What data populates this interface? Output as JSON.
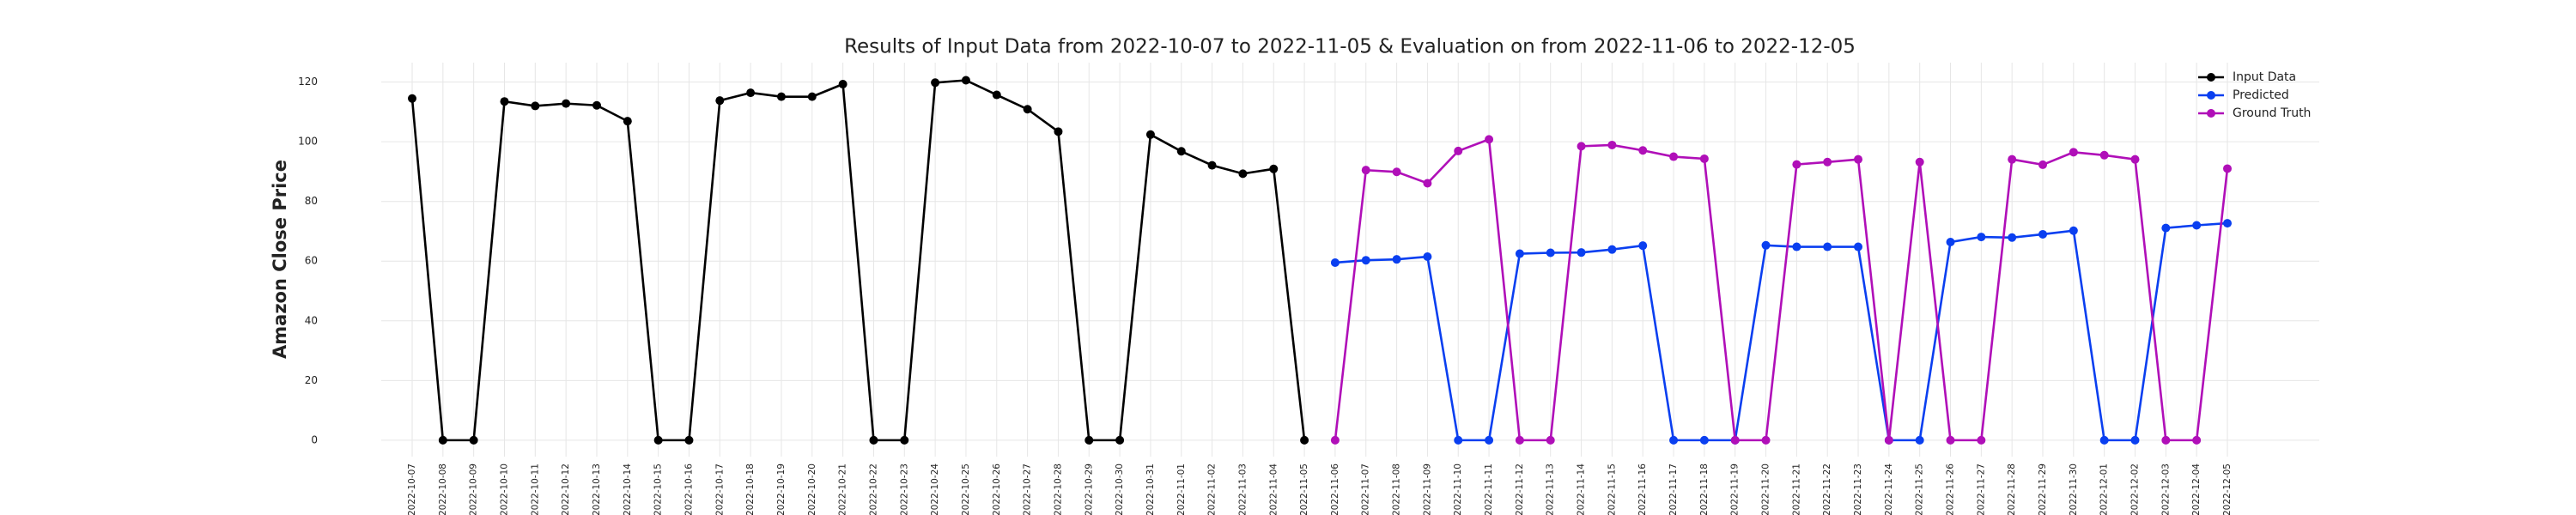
{
  "chart_data": {
    "type": "line",
    "title": "Results of Input Data from 2022-10-07 to 2022-11-05 & Evaluation on from 2022-11-06 to 2022-12-05",
    "y_label": "Amazon Close Price",
    "x": [
      "2022-10-07",
      "2022-10-08",
      "2022-10-09",
      "2022-10-10",
      "2022-10-11",
      "2022-10-12",
      "2022-10-13",
      "2022-10-14",
      "2022-10-15",
      "2022-10-16",
      "2022-10-17",
      "2022-10-18",
      "2022-10-19",
      "2022-10-20",
      "2022-10-21",
      "2022-10-22",
      "2022-10-23",
      "2022-10-24",
      "2022-10-25",
      "2022-10-26",
      "2022-10-27",
      "2022-10-28",
      "2022-10-29",
      "2022-10-30",
      "2022-10-31",
      "2022-11-01",
      "2022-11-02",
      "2022-11-03",
      "2022-11-04",
      "2022-11-05",
      "2022-11-06",
      "2022-11-07",
      "2022-11-08",
      "2022-11-09",
      "2022-11-10",
      "2022-11-11",
      "2022-11-12",
      "2022-11-13",
      "2022-11-14",
      "2022-11-15",
      "2022-11-16",
      "2022-11-17",
      "2022-11-18",
      "2022-11-19",
      "2022-11-20",
      "2022-11-21",
      "2022-11-22",
      "2022-11-23",
      "2022-11-24",
      "2022-11-25",
      "2022-11-26",
      "2022-11-27",
      "2022-11-28",
      "2022-11-29",
      "2022-11-30",
      "2022-12-01",
      "2022-12-02",
      "2022-12-03",
      "2022-12-04",
      "2022-12-05"
    ],
    "series": [
      {
        "name": "Input Data",
        "color": "#000000",
        "values": [
          114.5,
          0,
          0,
          113.5,
          112,
          112.8,
          112.2,
          106.9,
          0,
          0,
          113.8,
          116.4,
          115.1,
          115.1,
          119.3,
          0,
          0,
          119.8,
          120.6,
          115.7,
          110.9,
          103.4,
          0,
          0,
          102.4,
          96.8,
          92.1,
          89.3,
          90.9,
          0,
          null,
          null,
          null,
          null,
          null,
          null,
          null,
          null,
          null,
          null,
          null,
          null,
          null,
          null,
          null,
          null,
          null,
          null,
          null,
          null,
          null,
          null,
          null,
          null,
          null,
          null,
          null,
          null,
          null,
          null
        ]
      },
      {
        "name": "Predicted",
        "color": "#0a3ff0",
        "values": [
          null,
          null,
          null,
          null,
          null,
          null,
          null,
          null,
          null,
          null,
          null,
          null,
          null,
          null,
          null,
          null,
          null,
          null,
          null,
          null,
          null,
          null,
          null,
          null,
          null,
          null,
          null,
          null,
          null,
          null,
          59.5,
          60.3,
          60.6,
          61.5,
          0,
          0,
          62.5,
          62.8,
          62.9,
          63.9,
          65.2,
          0,
          0,
          0,
          65.3,
          64.8,
          64.8,
          64.8,
          0,
          0,
          66.4,
          68.1,
          67.9,
          69.0,
          70.2,
          0,
          0,
          71.1,
          72.0,
          72.7
        ]
      },
      {
        "name": "Ground Truth",
        "color": "#b00fb8",
        "values": [
          null,
          null,
          null,
          null,
          null,
          null,
          null,
          null,
          null,
          null,
          null,
          null,
          null,
          null,
          null,
          null,
          null,
          null,
          null,
          null,
          null,
          null,
          null,
          null,
          null,
          null,
          null,
          null,
          null,
          null,
          0,
          90.5,
          89.9,
          86.1,
          96.9,
          100.8,
          0,
          0,
          98.5,
          98.9,
          97.1,
          95.0,
          94.3,
          0,
          0,
          92.4,
          93.2,
          94.1,
          0,
          93.2,
          0,
          0,
          94.1,
          92.3,
          96.5,
          95.5,
          94.1,
          0,
          0,
          91.0
        ]
      }
    ],
    "ylim": [
      -5.5,
      126.5
    ],
    "yticks": [
      0,
      20,
      40,
      60,
      80,
      100,
      120
    ],
    "grid": true,
    "legend": "upper right"
  }
}
